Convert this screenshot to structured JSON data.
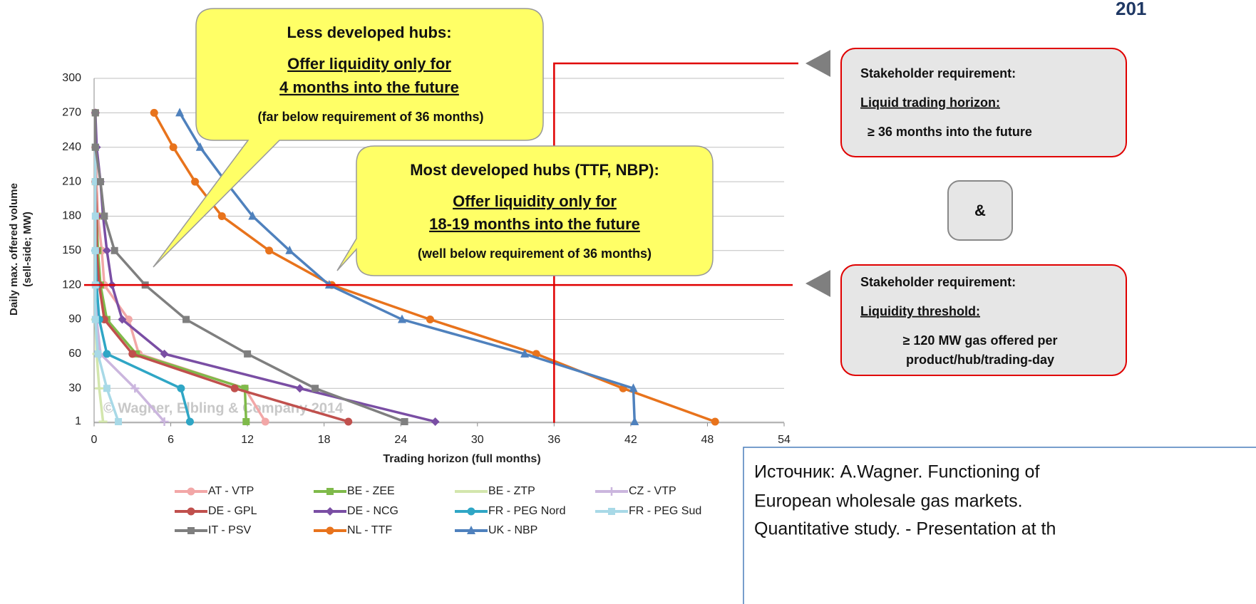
{
  "chart_data": {
    "type": "line",
    "corner_text": "201",
    "xlabel": "Trading horizon (full months)",
    "ylabel": [
      "Daily max. offered volume",
      "(sell-side; MW)"
    ],
    "watermark": "© Wagner, Elbling & Company 2014",
    "xlim": [
      0,
      54
    ],
    "xticks": [
      0,
      6,
      12,
      18,
      24,
      30,
      36,
      42,
      48,
      54
    ],
    "ylim": [
      0,
      300
    ],
    "yticks": [
      1,
      30,
      60,
      90,
      120,
      150,
      180,
      210,
      240,
      270,
      300
    ],
    "grid": true,
    "reference_lines": {
      "x": 36,
      "y": 120,
      "color": "#e00000"
    },
    "y": [
      1,
      30,
      60,
      90,
      120,
      150,
      180,
      210,
      240,
      270
    ],
    "series": [
      {
        "name": "AT - VTP",
        "color": "#f2a7a7",
        "marker": "circle",
        "values": [
          13.4,
          11.8,
          3.5,
          2.7,
          0.8,
          0.6,
          0.3,
          0.2,
          0.1,
          0.1
        ]
      },
      {
        "name": "BE - ZEE",
        "color": "#7fba4a",
        "marker": "square",
        "values": [
          11.9,
          11.8,
          3.3,
          1.0,
          0.5,
          0.3,
          0.2,
          0.1,
          0.1,
          0.1
        ]
      },
      {
        "name": "BE - ZTP",
        "color": "#d3e6ad",
        "marker": "dash",
        "values": [
          0.7,
          0.4,
          0.2,
          0.1,
          0.1,
          null,
          null,
          null,
          null,
          null
        ]
      },
      {
        "name": "CZ - VTP",
        "color": "#cbb6de",
        "marker": "plus",
        "values": [
          5.5,
          3.2,
          0.5,
          0.2,
          0.1,
          null,
          null,
          null,
          null,
          null
        ]
      },
      {
        "name": "DE - GPL",
        "color": "#c0504d",
        "marker": "circle",
        "values": [
          19.9,
          11.0,
          3.0,
          0.8,
          0.4,
          0.2,
          0.2,
          0.1,
          0.1,
          0.1
        ]
      },
      {
        "name": "DE - NCG",
        "color": "#7a4ea4",
        "marker": "diamond",
        "values": [
          26.7,
          16.1,
          5.5,
          2.2,
          1.4,
          1.0,
          0.7,
          0.5,
          0.2,
          0.1
        ]
      },
      {
        "name": "FR - PEG Nord",
        "color": "#2fa6c5",
        "marker": "circle",
        "values": [
          7.5,
          6.8,
          1.0,
          0.4,
          0.2,
          0.1,
          null,
          null,
          null,
          null
        ]
      },
      {
        "name": "FR - PEG Sud",
        "color": "#a8d9e7",
        "marker": "square",
        "values": [
          1.9,
          1.0,
          0.3,
          0.1,
          0.1,
          0.1,
          0.1,
          0.1,
          0.1,
          null
        ]
      },
      {
        "name": "IT - PSV",
        "color": "#7f7f7f",
        "marker": "square",
        "values": [
          24.3,
          17.3,
          12.0,
          7.2,
          4.0,
          1.6,
          0.8,
          0.5,
          0.1,
          0.1
        ]
      },
      {
        "name": "NL - TTF",
        "color": "#e8731c",
        "marker": "circle",
        "values": [
          48.6,
          41.4,
          34.6,
          26.3,
          18.6,
          13.7,
          10.0,
          7.9,
          6.2,
          4.7
        ]
      },
      {
        "name": "UK - NBP",
        "color": "#4f81bd",
        "marker": "triangle",
        "values": [
          42.3,
          42.2,
          33.7,
          24.1,
          18.4,
          15.3,
          12.4,
          10.3,
          8.3,
          6.7
        ]
      }
    ]
  },
  "callouts": {
    "less_developed": {
      "title": "Less developed hubs:",
      "line1": "Offer liquidity only for",
      "line2": "4 months into the future",
      "note": "(far below requirement of 36 months)"
    },
    "most_developed": {
      "title": "Most developed hubs (TTF, NBP):",
      "line1": "Offer liquidity only for",
      "line2": "18-19 months into the future",
      "note": "(well below requirement of 36 months)"
    },
    "requirement_1": {
      "title": "Stakeholder requirement:",
      "label": "Liquid trading horizon:",
      "text": "≥ 36 months into the future"
    },
    "and": "&",
    "requirement_2": {
      "title": "Stakeholder requirement:",
      "label": "Liquidity threshold:",
      "text1": "≥ 120 MW gas offered per",
      "text2": "product/hub/trading-day"
    }
  },
  "source": [
    "Источник: A.Wagner. Functioning  of",
    "European wholesale gas markets.",
    "Quantitative study. - Presentation at th"
  ]
}
